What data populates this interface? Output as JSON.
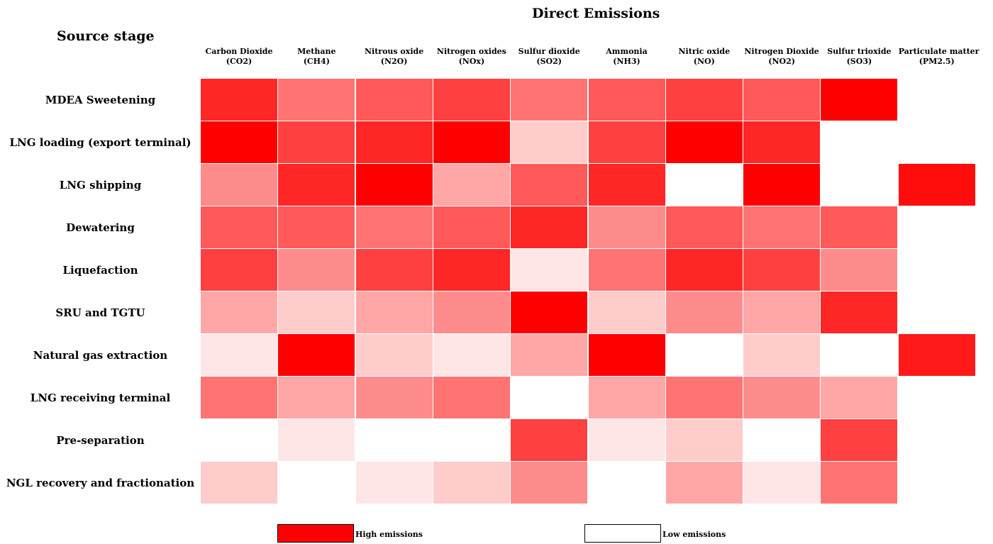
{
  "chart_data": {
    "type": "heatmap",
    "title": "Direct Emissions",
    "row_header": "Source stage",
    "columns": [
      {
        "name": "Carbon Dioxide",
        "formula": "(CO2)"
      },
      {
        "name": "Methane",
        "formula": "(CH4)"
      },
      {
        "name": "Nitrous oxide",
        "formula": "(N2O)"
      },
      {
        "name": "Nitrogen oxides",
        "formula": "(NOx)"
      },
      {
        "name": "Sulfur dioxide",
        "formula": "(SO2)"
      },
      {
        "name": "Ammonia",
        "formula": "(NH3)"
      },
      {
        "name": "Nitric oxide",
        "formula": "(NO)"
      },
      {
        "name": "Nitrogen Dioxide",
        "formula": "(NO2)"
      },
      {
        "name": "Sulfur trioxide",
        "formula": "(SO3)"
      },
      {
        "name": "Particulate matter",
        "formula": "(PM2.5)"
      }
    ],
    "rows": [
      "MDEA Sweetening",
      "LNG loading (export terminal)",
      "LNG shipping",
      "Dewatering",
      "Liquefaction",
      "SRU and TGTU",
      "Natural gas extraction",
      "LNG receiving terminal",
      "Pre-separation",
      "NGL recovery and fractionation"
    ],
    "values": [
      [
        0.85,
        0.55,
        0.65,
        0.75,
        0.55,
        0.65,
        0.75,
        0.65,
        1.0,
        null
      ],
      [
        1.0,
        0.75,
        0.85,
        1.0,
        0.2,
        0.75,
        1.0,
        0.85,
        null,
        null
      ],
      [
        0.45,
        0.85,
        1.0,
        0.35,
        0.65,
        0.85,
        0.0,
        1.0,
        0.0,
        0.95
      ],
      [
        0.65,
        0.65,
        0.55,
        0.65,
        0.85,
        0.45,
        0.65,
        0.55,
        0.65,
        null
      ],
      [
        0.75,
        0.45,
        0.75,
        0.85,
        0.1,
        0.55,
        0.85,
        0.75,
        0.45,
        null
      ],
      [
        0.35,
        0.2,
        0.35,
        0.45,
        1.0,
        0.2,
        0.45,
        0.35,
        0.85,
        null
      ],
      [
        0.1,
        1.0,
        0.2,
        0.1,
        0.35,
        1.0,
        0.0,
        0.2,
        0.0,
        0.9
      ],
      [
        0.55,
        0.35,
        0.45,
        0.55,
        0.0,
        0.35,
        0.55,
        0.45,
        0.35,
        null
      ],
      [
        0.0,
        0.1,
        0.0,
        0.0,
        0.75,
        0.1,
        0.2,
        0.0,
        0.75,
        null
      ],
      [
        0.2,
        0.0,
        0.1,
        0.2,
        0.45,
        0.0,
        0.35,
        0.1,
        0.55,
        null
      ]
    ],
    "scale": [
      0,
      1
    ],
    "colors": {
      "high": "#ff0000",
      "low": "#ffffff"
    },
    "legend": {
      "high_label": "High emissions",
      "low_label": "Low emissions"
    },
    "legend_placement": "bottom"
  }
}
